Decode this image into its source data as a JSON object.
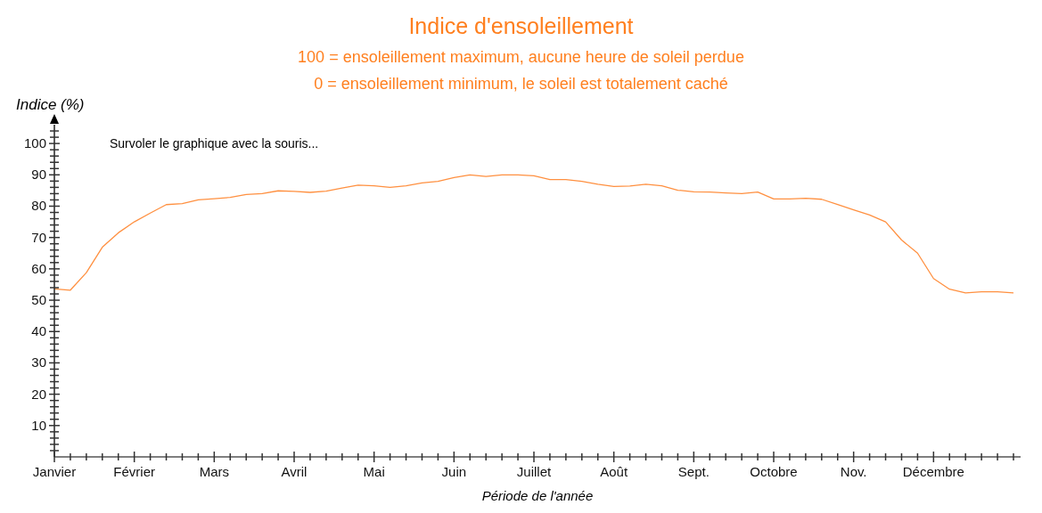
{
  "chart_data": {
    "type": "line",
    "title": "Indice d'ensoleillement",
    "subtitle": "100 = ensoleillement maximum, aucune heure de soleil perdue\n0 = ensoleillement minimum, le soleil est totalement caché",
    "xlabel": "Période de l'année",
    "ylabel": "Indice (%)",
    "annotations": [
      "Survoler le graphique avec la souris..."
    ],
    "categories": [
      "Janvier",
      null,
      null,
      null,
      null,
      "Février",
      null,
      null,
      null,
      null,
      "Mars",
      null,
      null,
      null,
      null,
      "Avril",
      null,
      null,
      null,
      null,
      "Mai",
      null,
      null,
      null,
      null,
      "Juin",
      null,
      null,
      null,
      null,
      "Juillet",
      null,
      null,
      null,
      null,
      "Août",
      null,
      null,
      null,
      null,
      "Sept.",
      null,
      null,
      null,
      null,
      "Octobre",
      null,
      null,
      null,
      null,
      "Nov.",
      null,
      null,
      null,
      null,
      "Décembre",
      null,
      null,
      null,
      null,
      null
    ],
    "series": [
      {
        "color": "#ff9040",
        "values": [
          53.6,
          53.2,
          58.8,
          66.9,
          71.5,
          75.0,
          77.8,
          80.5,
          80.8,
          82.0,
          82.4,
          82.8,
          83.7,
          84.0,
          84.9,
          84.7,
          84.4,
          84.8,
          85.8,
          86.7,
          86.5,
          86.0,
          86.5,
          87.4,
          87.9,
          89.1,
          90.0,
          89.5,
          90.0,
          90.0,
          89.7,
          88.5,
          88.5,
          87.9,
          87.0,
          86.3,
          86.4,
          87.0,
          86.5,
          85.1,
          84.6,
          84.5,
          84.2,
          84.0,
          84.5,
          82.3,
          82.3,
          82.5,
          82.2,
          80.5,
          78.8,
          77.2,
          75.0,
          69.2,
          65.0,
          56.9,
          53.5,
          52.3,
          52.7,
          52.7,
          52.3
        ]
      }
    ],
    "ylim": [
      0,
      106
    ],
    "yticks": [
      10,
      20,
      30,
      40,
      50,
      60,
      70,
      80,
      90,
      100,
      {
        "value": 2,
        "label": null
      },
      {
        "value": 4,
        "label": null
      },
      {
        "value": 6,
        "label": null
      },
      {
        "value": 8,
        "label": null
      },
      {
        "value": 12,
        "label": null
      },
      {
        "value": 14,
        "label": null
      },
      {
        "value": 16,
        "label": null
      },
      {
        "value": 18,
        "label": null
      },
      {
        "value": 22,
        "label": null
      },
      {
        "value": 24,
        "label": null
      },
      {
        "value": 26,
        "label": null
      },
      {
        "value": 28,
        "label": null
      },
      {
        "value": 32,
        "label": null
      },
      {
        "value": 34,
        "label": null
      },
      {
        "value": 36,
        "label": null
      },
      {
        "value": 38,
        "label": null
      },
      {
        "value": 42,
        "label": null
      },
      {
        "value": 44,
        "label": null
      },
      {
        "value": 46,
        "label": null
      },
      {
        "value": 48,
        "label": null
      },
      {
        "value": 52,
        "label": null
      },
      {
        "value": 54,
        "label": null
      },
      {
        "value": 56,
        "label": null
      },
      {
        "value": 58,
        "label": null
      },
      {
        "value": 62,
        "label": null
      },
      {
        "value": 64,
        "label": null
      },
      {
        "value": 66,
        "label": null
      },
      {
        "value": 68,
        "label": null
      },
      {
        "value": 72,
        "label": null
      },
      {
        "value": 74,
        "label": null
      },
      {
        "value": 76,
        "label": null
      },
      {
        "value": 78,
        "label": null
      },
      {
        "value": 82,
        "label": null
      },
      {
        "value": 84,
        "label": null
      },
      {
        "value": 86,
        "label": null
      },
      {
        "value": 88,
        "label": null
      },
      {
        "value": 92,
        "label": null
      },
      {
        "value": 94,
        "label": null
      },
      {
        "value": 96,
        "label": null
      },
      {
        "value": 98,
        "label": null
      },
      {
        "value": 102,
        "label": null
      },
      {
        "value": 104,
        "label": null
      }
    ],
    "grid": false,
    "marker": "none",
    "line_style": "solid"
  }
}
